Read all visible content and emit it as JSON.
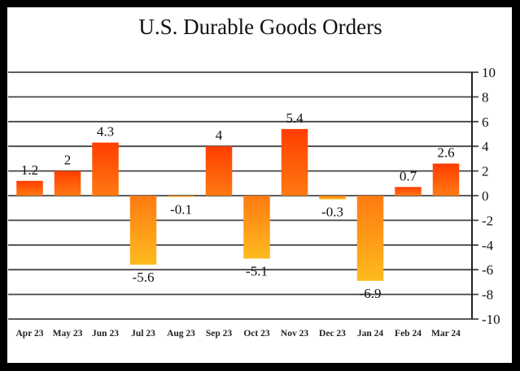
{
  "chart_data": {
    "type": "bar",
    "title": "U.S. Durable Goods Orders",
    "xlabel": "",
    "ylabel": "",
    "categories": [
      "Apr 23",
      "May 23",
      "Jun 23",
      "Jul 23",
      "Aug 23",
      "Sep 23",
      "Oct 23",
      "Nov 23",
      "Dec 23",
      "Jan 24",
      "Feb 24",
      "Mar 24"
    ],
    "values": [
      1.2,
      2,
      4.3,
      -5.6,
      -0.1,
      4,
      -5.1,
      5.4,
      -0.3,
      -6.9,
      0.7,
      2.6
    ],
    "data_labels": [
      "1.2",
      "2",
      "4.3",
      "-5.6",
      "-0.1",
      "4",
      "-5.1",
      "5.4",
      "-0.3",
      "-6.9",
      "0.7",
      "2.6"
    ],
    "ylim": [
      -10,
      10
    ],
    "yticks": [
      10,
      8,
      6,
      4,
      2,
      0,
      -2,
      -4,
      -6,
      -8,
      -10
    ],
    "ytick_labels": [
      "10",
      "8",
      "6",
      "4",
      "2",
      "0",
      "-2",
      "-4",
      "-6",
      "-8",
      "-10"
    ],
    "y_axis_side": "right",
    "grid": true,
    "legend": "none",
    "colors": {
      "positive_top": "#ff3d00",
      "positive_base": "#ff7a12",
      "negative_top": "#ff7a12",
      "negative_bottom": "#fdbb1e",
      "gridline": "#444444",
      "axis": "#222222",
      "frame": "#000000",
      "background": "#ffffff"
    }
  }
}
